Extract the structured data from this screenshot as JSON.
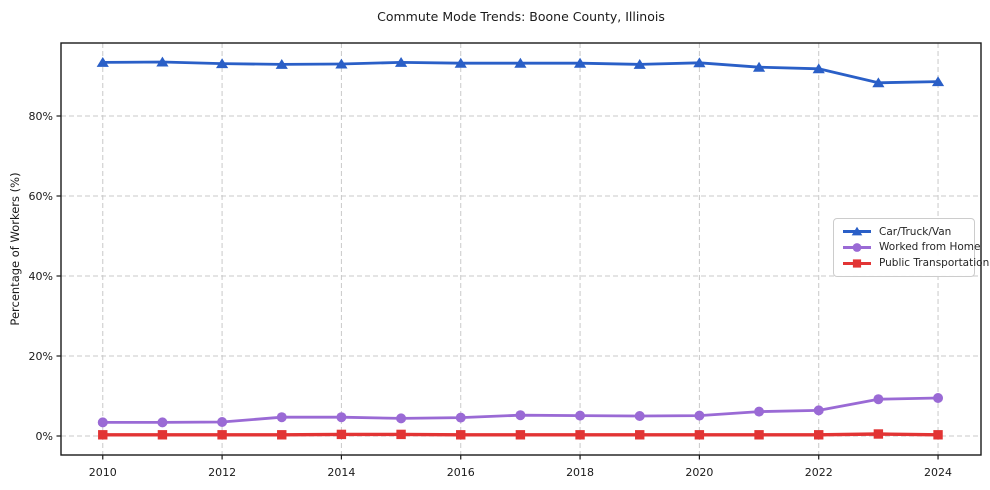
{
  "chart_data": {
    "type": "line",
    "title": "Commute Mode Trends: Boone County, Illinois",
    "xlabel": "",
    "ylabel": "Percentage of Workers (%)",
    "grid": true,
    "grid_style": "dashed",
    "legend_position": "center-right",
    "xlim": [
      2009.3,
      2024.72
    ],
    "ylim": [
      -4.75,
      98.25
    ],
    "x": [
      2010,
      2011,
      2012,
      2013,
      2014,
      2015,
      2016,
      2017,
      2018,
      2019,
      2020,
      2021,
      2022,
      2023,
      2024
    ],
    "x_ticks": [
      2010,
      2012,
      2014,
      2016,
      2018,
      2020,
      2022,
      2024
    ],
    "x_tick_labels": [
      "2010",
      "2012",
      "2014",
      "2016",
      "2018",
      "2020",
      "2022",
      "2024"
    ],
    "y_ticks": [
      0,
      20,
      40,
      60,
      80
    ],
    "y_tick_labels": [
      "0%",
      "20%",
      "40%",
      "60%",
      "80%"
    ],
    "series": [
      {
        "name": "Car/Truck/Van",
        "color": "#2a5fc7",
        "marker": "triangle",
        "linewidth": 2.8,
        "values": [
          93.4,
          93.5,
          93.1,
          92.9,
          93.0,
          93.4,
          93.2,
          93.2,
          93.2,
          92.9,
          93.3,
          92.2,
          91.8,
          88.3,
          88.6
        ]
      },
      {
        "name": "Worked from Home",
        "color": "#9a6ad5",
        "marker": "circle",
        "linewidth": 2.8,
        "values": [
          3.4,
          3.4,
          3.5,
          4.7,
          4.7,
          4.4,
          4.6,
          5.2,
          5.1,
          5.0,
          5.1,
          6.1,
          6.4,
          9.2,
          9.5
        ]
      },
      {
        "name": "Public Transportation",
        "color": "#e23434",
        "marker": "square",
        "linewidth": 3.4,
        "values": [
          0.3,
          0.3,
          0.3,
          0.3,
          0.4,
          0.4,
          0.3,
          0.3,
          0.3,
          0.3,
          0.3,
          0.3,
          0.3,
          0.5,
          0.3
        ]
      }
    ]
  }
}
